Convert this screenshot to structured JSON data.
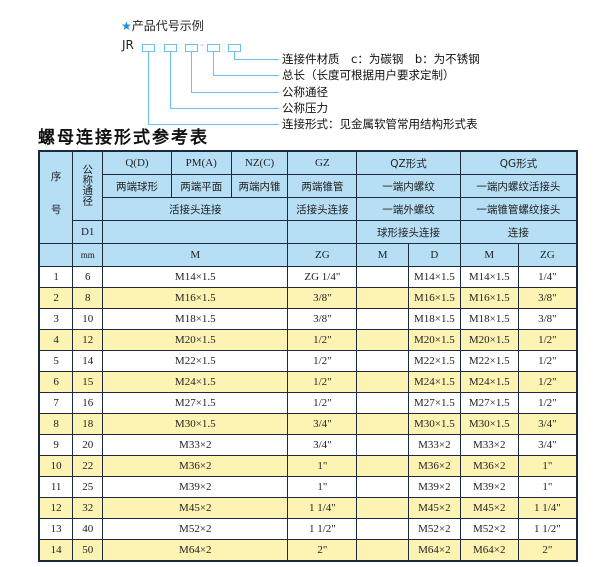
{
  "legend": {
    "title": "产品代号示例",
    "prefix": "JR",
    "separator": "-",
    "items": [
      "连接件材质　c：为碳钢　b：为不锈钢",
      "总长（长度可根据用户要求定制）",
      "公称通径",
      "公称压力",
      "连接形式：见金属软管常用结构形式表"
    ]
  },
  "table_title": "螺母连接形式参考表",
  "header": {
    "seq": "序　号",
    "dn": "公称通径",
    "d1": "D1",
    "mm": "mm",
    "qd": "Q(D)",
    "pm": "PM(A)",
    "nz": "NZ(C)",
    "gz": "GZ",
    "qz": "QZ形式",
    "qg": "QG形式",
    "qd2": "两端球形",
    "pm2": "两端平面",
    "nz2": "两端内锥",
    "gz2": "两端锥管",
    "qz2": "一端内螺纹",
    "qg2": "一端内螺纹活接头",
    "conn": "活接头连接",
    "gz3": "活接头连接",
    "qz3": "一端外螺纹",
    "qg3": "一端锥管螺纹接头",
    "qz4": "球形接头连接",
    "qg4": "连接",
    "m": "M",
    "zg": "ZG",
    "qzm": "M",
    "qzd": "D",
    "qgm": "M",
    "qgzg": "ZG"
  },
  "rows": [
    [
      "1",
      "6",
      "M14×1.5",
      "ZG 1/4\"",
      "",
      "M14×1.5",
      "M14×1.5",
      "1/4\""
    ],
    [
      "2",
      "8",
      "M16×1.5",
      "3/8\"",
      "",
      "M16×1.5",
      "M16×1.5",
      "3/8\""
    ],
    [
      "3",
      "10",
      "M18×1.5",
      "3/8\"",
      "",
      "M18×1.5",
      "M18×1.5",
      "3/8\""
    ],
    [
      "4",
      "12",
      "M20×1.5",
      "1/2\"",
      "",
      "M20×1.5",
      "M20×1.5",
      "1/2\""
    ],
    [
      "5",
      "14",
      "M22×1.5",
      "1/2\"",
      "",
      "M22×1.5",
      "M22×1.5",
      "1/2\""
    ],
    [
      "6",
      "15",
      "M24×1.5",
      "1/2\"",
      "",
      "M24×1.5",
      "M24×1.5",
      "1/2\""
    ],
    [
      "7",
      "16",
      "M27×1.5",
      "1/2\"",
      "",
      "M27×1.5",
      "M27×1.5",
      "1/2\""
    ],
    [
      "8",
      "18",
      "M30×1.5",
      "3/4\"",
      "",
      "M30×1.5",
      "M30×1.5",
      "3/4\""
    ],
    [
      "9",
      "20",
      "M33×2",
      "3/4\"",
      "",
      "M33×2",
      "M33×2",
      "3/4\""
    ],
    [
      "10",
      "22",
      "M36×2",
      "1\"",
      "",
      "M36×2",
      "M36×2",
      "1\""
    ],
    [
      "11",
      "25",
      "M39×2",
      "1\"",
      "",
      "M39×2",
      "M39×2",
      "1\""
    ],
    [
      "12",
      "32",
      "M45×2",
      "1 1/4\"",
      "",
      "M45×2",
      "M45×2",
      "1 1/4\""
    ],
    [
      "13",
      "40",
      "M52×2",
      "1 1/2\"",
      "",
      "M52×2",
      "M52×2",
      "1 1/2\""
    ],
    [
      "14",
      "50",
      "M64×2",
      "2\"",
      "",
      "M64×2",
      "M64×2",
      "2\""
    ]
  ]
}
